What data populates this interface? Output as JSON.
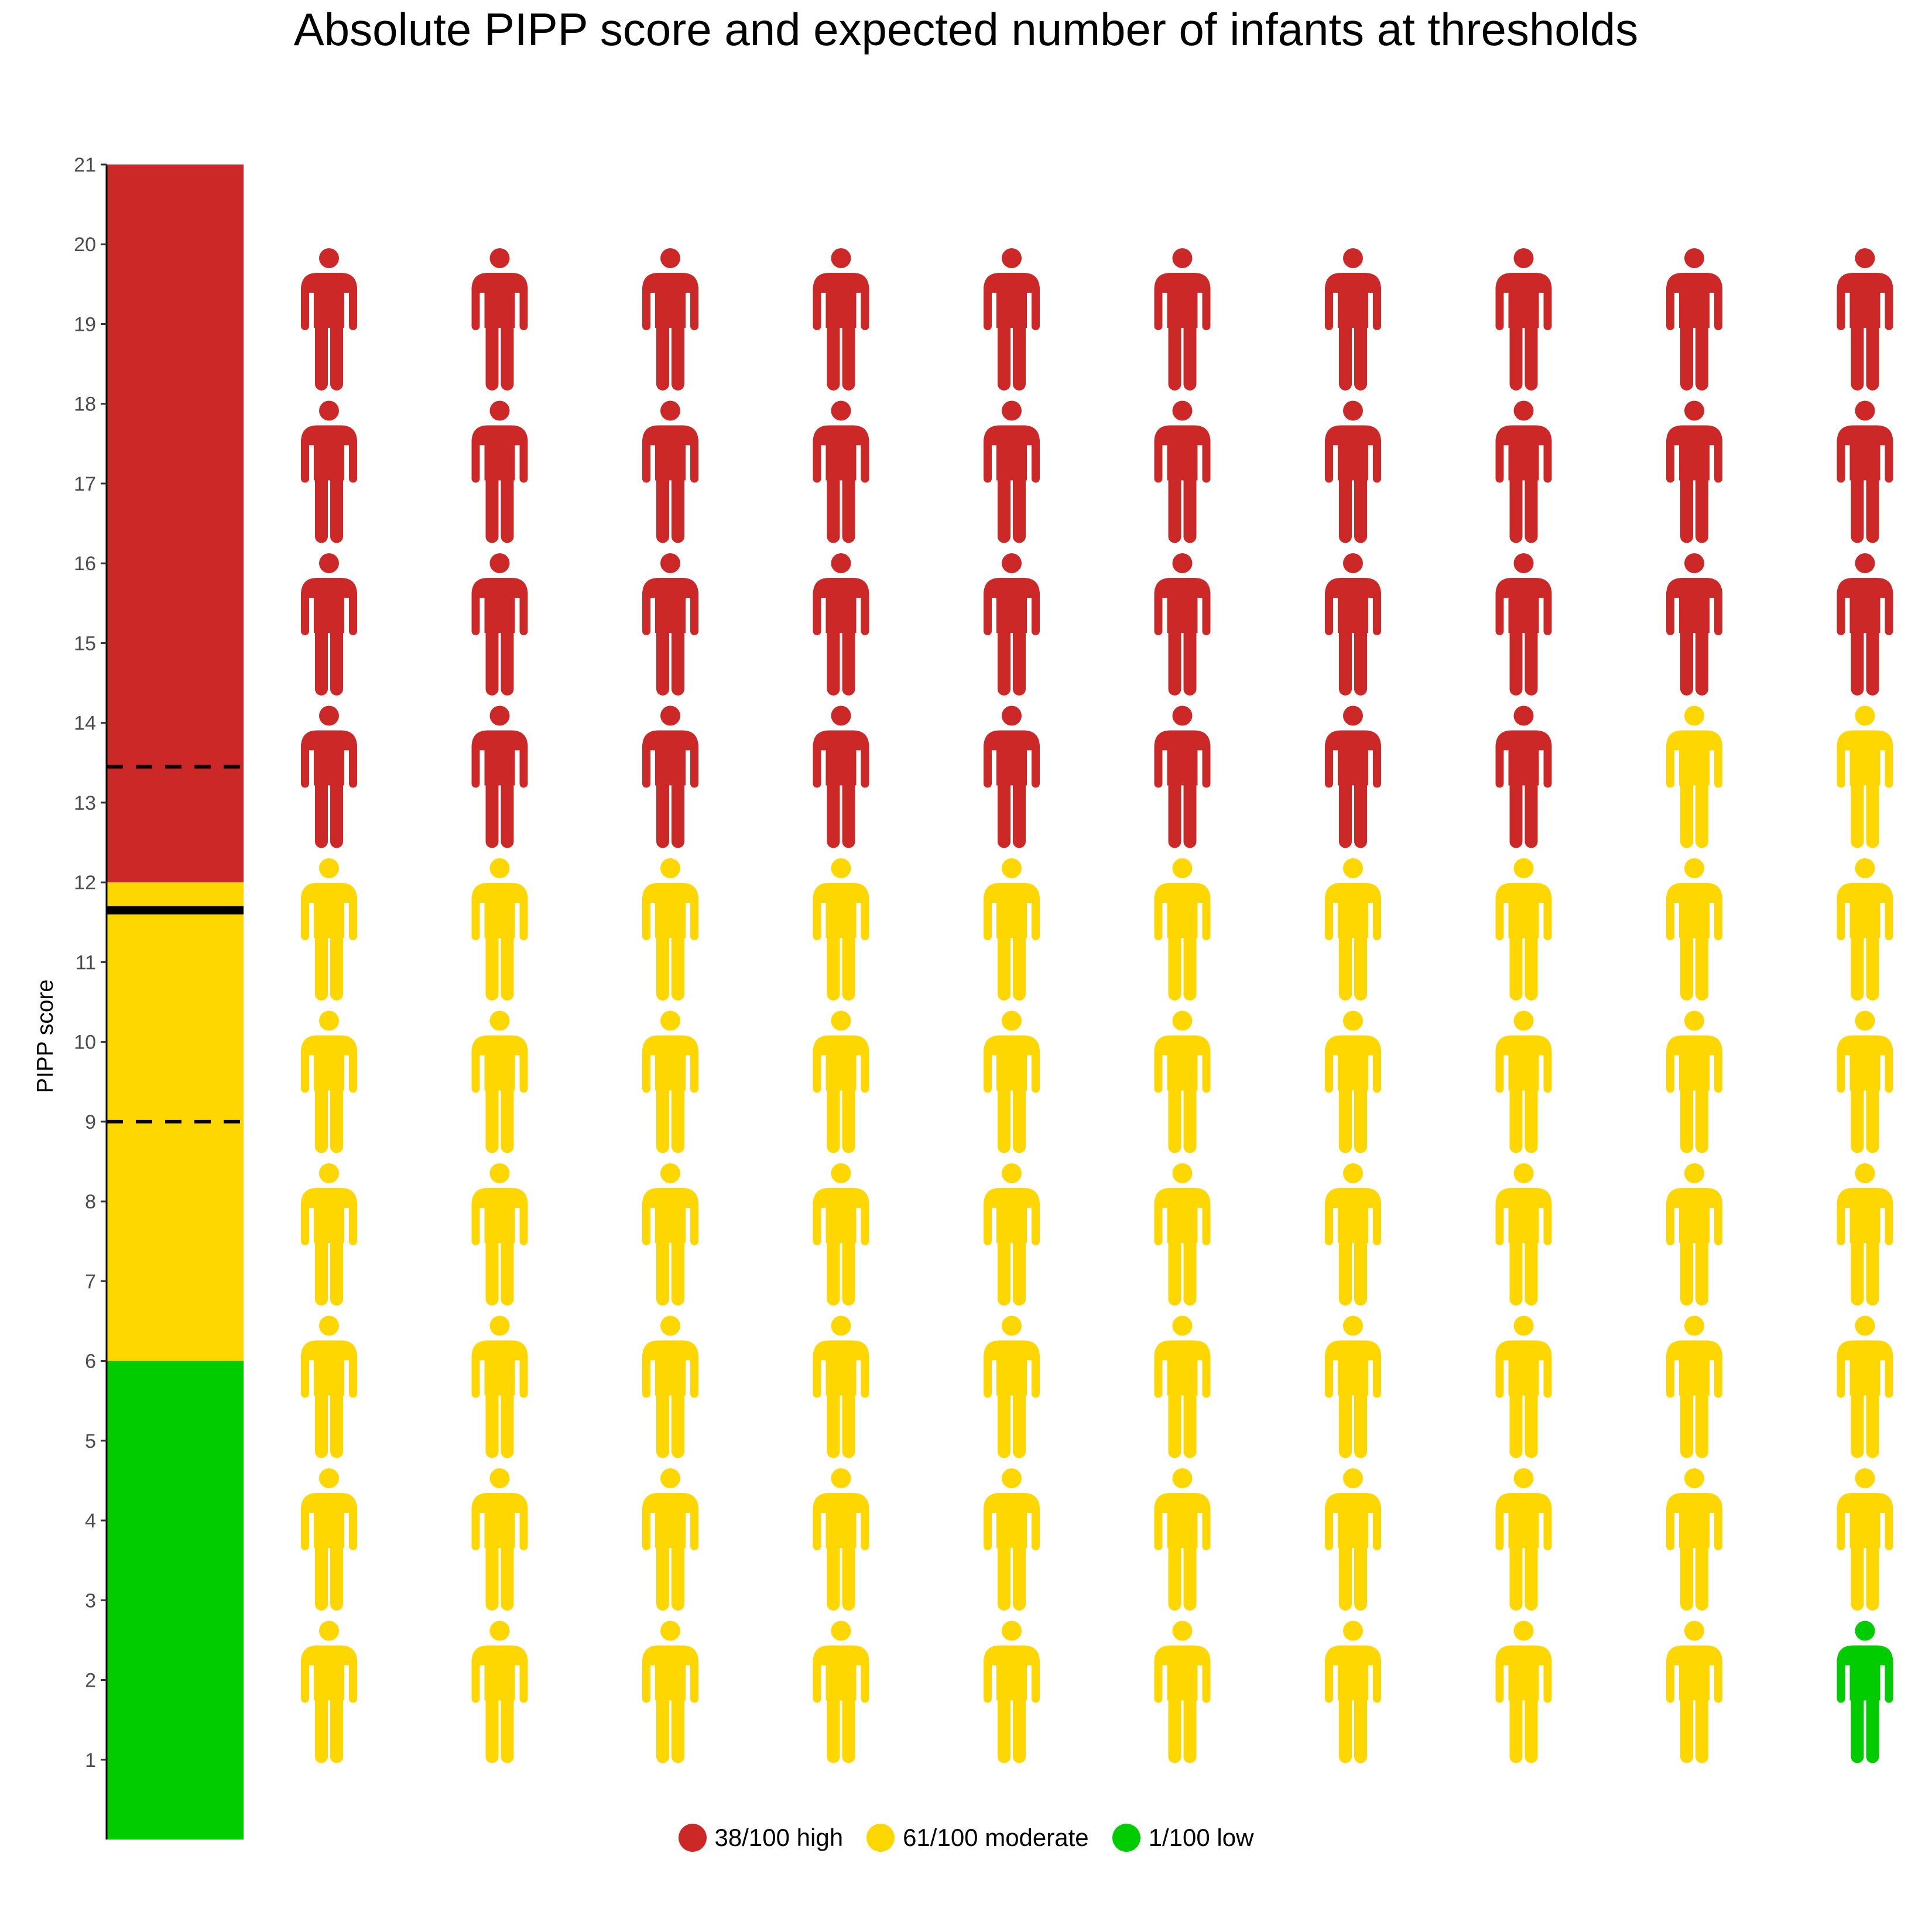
{
  "chart_data": {
    "type": "pictogram",
    "title": "Absolute PIPP score and expected number of infants at thresholds",
    "ylabel": "PIPP score",
    "ylim": [
      0,
      21
    ],
    "yticks": [
      1,
      2,
      3,
      4,
      5,
      6,
      7,
      8,
      9,
      10,
      11,
      12,
      13,
      14,
      15,
      16,
      17,
      18,
      19,
      20,
      21
    ],
    "score_bands": [
      {
        "from": 0,
        "to": 6,
        "level": "low",
        "color": "#00CC00"
      },
      {
        "from": 6,
        "to": 12,
        "level": "moderate",
        "color": "#FFD700"
      },
      {
        "from": 12,
        "to": 21,
        "level": "high",
        "color": "#CC2828"
      }
    ],
    "threshold_lines": [
      {
        "y": 13.45,
        "style": "dashed"
      },
      {
        "y": 11.65,
        "style": "solid"
      },
      {
        "y": 9.0,
        "style": "dashed"
      }
    ],
    "grid": {
      "rows": 10,
      "cols": 10
    },
    "series": [
      {
        "name": "38/100 high",
        "count": 38,
        "color": "#CC2828"
      },
      {
        "name": "61/100 moderate",
        "count": 61,
        "color": "#FFD700"
      },
      {
        "name": "1/100 low",
        "count": 1,
        "color": "#00CC00"
      }
    ],
    "legend_position": "bottom"
  }
}
